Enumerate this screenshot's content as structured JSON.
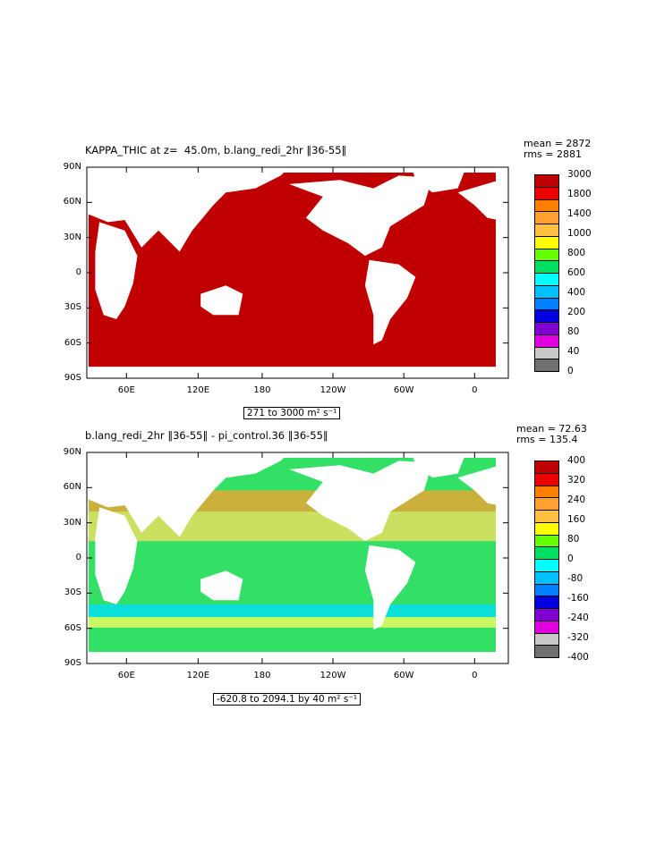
{
  "panels": [
    {
      "title": "KAPPA_THIC at z=  45.0m, b.lang_redi_2hr ‖36-55‖",
      "mean": "mean = 2872",
      "rms": "rms = 2881",
      "range": "271 to 3000 m² s⁻¹",
      "ocean_color": "#c00000",
      "colorbar": {
        "labels": [
          "3000",
          "1800",
          "1400",
          "1000",
          "800",
          "600",
          "400",
          "200",
          "80",
          "40",
          "0"
        ],
        "colors": [
          "#c00000",
          "#ee0000",
          "#ff7f00",
          "#ffa030",
          "#ffc040",
          "#ffff00",
          "#66ff00",
          "#00e060",
          "#00ffff",
          "#00c0ff",
          "#0080ff",
          "#0000e0",
          "#8000d0",
          "#e000e0",
          "#c8c8c8",
          "#707070"
        ]
      }
    },
    {
      "title": "b.lang_redi_2hr ‖36-55‖ - pi_control.36 ‖36-55‖",
      "mean": "mean = 72.63",
      "rms": "rms = 135.4",
      "range": "-620.8 to 2094.1 by 40 m² s⁻¹",
      "ocean_color": "#33e066",
      "colorbar": {
        "labels": [
          "400",
          "320",
          "240",
          "160",
          "80",
          "0",
          "-80",
          "-160",
          "-240",
          "-320",
          "-400"
        ],
        "colors": [
          "#c00000",
          "#ee0000",
          "#ff7f00",
          "#ffa030",
          "#ffc040",
          "#ffff00",
          "#66ff00",
          "#00e060",
          "#00ffff",
          "#00c0ff",
          "#0080ff",
          "#0000e0",
          "#8000d0",
          "#e000e0",
          "#c8c8c8",
          "#707070"
        ]
      }
    }
  ],
  "axes": {
    "lat_labels": [
      "90N",
      "60N",
      "30N",
      "0",
      "30S",
      "60S",
      "90S"
    ],
    "lon_labels": [
      "60E",
      "120E",
      "180",
      "120W",
      "60W",
      "0"
    ]
  }
}
